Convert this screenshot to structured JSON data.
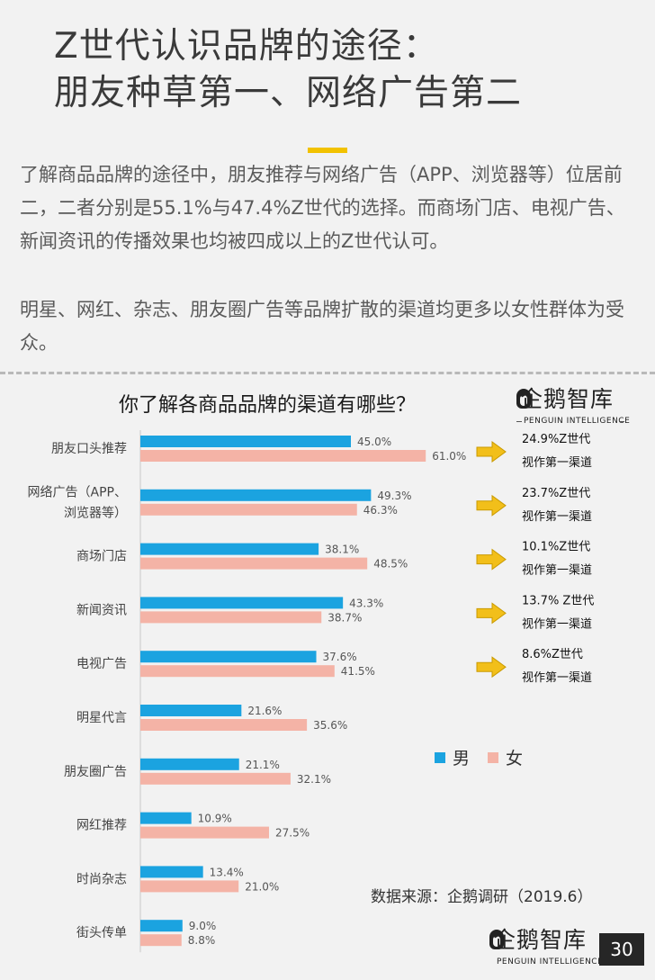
{
  "title_lines": [
    "Z世代认识品牌的途径：",
    "朋友种草第一、网络广告第二"
  ],
  "paragraphs": [
    "了解商品品牌的途径中，朋友推荐与网络广告（APP、浏览器等）位居前二，二者分别是55.1%与47.4%Z世代的选择。而商场门店、电视广告、新闻资讯的传播效果也均被四成以上的Z世代认可。",
    "明星、网红、杂志、朋友圈广告等品牌扩散的渠道均更多以女性群体为受众。"
  ],
  "logo": {
    "mark": "企鹅智库",
    "sub": "PENGUIN INTELLIGENCE"
  },
  "source_text": "数据来源：企鹅调研（2019.6）",
  "page_number": "30",
  "colors": {
    "male": "#1ba3e0",
    "female": "#f4b3a6",
    "accent": "#f2c200",
    "arrow": "#f2bf1a"
  },
  "chart_data": {
    "type": "bar",
    "orientation": "horizontal",
    "title": "你了解各商品品牌的渠道有哪些？",
    "categories": [
      "朋友口头推荐",
      "网络广告（APP、浏览器等）",
      "商场门店",
      "新闻资讯",
      "电视广告",
      "明星代言",
      "朋友圈广告",
      "网红推荐",
      "时尚杂志",
      "街头传单"
    ],
    "category_lines": [
      [
        "朋友口头推荐"
      ],
      [
        "网络广告（APP、",
        "浏览器等）"
      ],
      [
        "商场门店"
      ],
      [
        "新闻资讯"
      ],
      [
        "电视广告"
      ],
      [
        "明星代言"
      ],
      [
        "朋友圈广告"
      ],
      [
        "网红推荐"
      ],
      [
        "时尚杂志"
      ],
      [
        "街头传单"
      ]
    ],
    "series": [
      {
        "name": "男",
        "values": [
          45.0,
          49.3,
          38.1,
          43.3,
          37.6,
          21.6,
          21.1,
          10.9,
          13.4,
          9.0
        ],
        "labels": [
          "45.0%",
          "49.3%",
          "38.1%",
          "43.3%",
          "37.6%",
          "21.6%",
          "21.1%",
          "10.9%",
          "13.4%",
          "9.0%"
        ]
      },
      {
        "name": "女",
        "values": [
          61.0,
          46.3,
          48.5,
          38.7,
          41.5,
          35.6,
          32.1,
          27.5,
          21.0,
          8.8
        ],
        "labels": [
          "61.0%",
          "46.3%",
          "48.5%",
          "38.7%",
          "41.5%",
          "35.6%",
          "32.1%",
          "27.5%",
          "21.0%",
          "8.8%"
        ]
      }
    ],
    "annotations": [
      [
        "24.9%Z世代",
        "视作第一渠道"
      ],
      [
        "23.7%Z世代",
        "视作第一渠道"
      ],
      [
        "10.1%Z世代",
        "视作第一渠道"
      ],
      [
        "13.7% Z世代",
        "视作第一渠道"
      ],
      [
        "8.6%Z世代",
        "视作第一渠道"
      ]
    ],
    "legend_position": "right",
    "grid": false
  }
}
